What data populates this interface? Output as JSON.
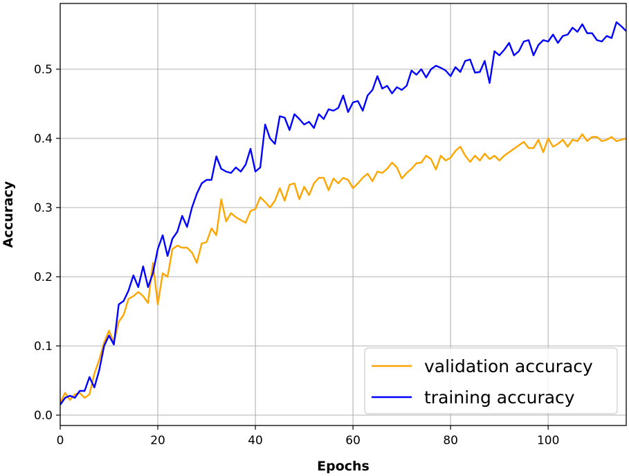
{
  "chart_data": {
    "type": "line",
    "title": "",
    "xlabel": "Epochs",
    "ylabel": "Accuracy",
    "xlim": [
      0,
      116
    ],
    "ylim": [
      -0.015,
      0.595
    ],
    "x_ticks": [
      0,
      20,
      40,
      60,
      80,
      100
    ],
    "x_tick_labels": [
      "0",
      "20",
      "40",
      "60",
      "80",
      "100"
    ],
    "y_ticks": [
      0.0,
      0.1,
      0.2,
      0.3,
      0.4,
      0.5
    ],
    "y_tick_labels": [
      "0.0",
      "0.1",
      "0.2",
      "0.3",
      "0.4",
      "0.5"
    ],
    "grid": true,
    "legend_position": "bottom-right",
    "series": [
      {
        "name": "validation accuracy",
        "color": "#FFA500",
        "x": [
          0,
          1,
          2,
          3,
          4,
          5,
          6,
          7,
          8,
          9,
          10,
          11,
          12,
          13,
          14,
          15,
          16,
          17,
          18,
          19,
          20,
          21,
          22,
          23,
          24,
          25,
          26,
          27,
          28,
          29,
          30,
          31,
          32,
          33,
          34,
          35,
          36,
          37,
          38,
          39,
          40,
          41,
          42,
          43,
          44,
          45,
          46,
          47,
          48,
          49,
          50,
          51,
          52,
          53,
          54,
          55,
          56,
          57,
          58,
          59,
          60,
          61,
          62,
          63,
          64,
          65,
          66,
          67,
          68,
          69,
          70,
          71,
          72,
          73,
          74,
          75,
          76,
          77,
          78,
          79,
          80,
          81,
          82,
          83,
          84,
          85,
          86,
          87,
          88,
          89,
          90,
          91,
          92,
          93,
          94,
          95,
          96,
          97,
          98,
          99,
          100,
          101,
          102,
          103,
          104,
          105,
          106,
          107,
          108,
          109,
          110,
          111,
          112,
          113,
          114,
          115,
          116
        ],
        "values": [
          0.018,
          0.032,
          0.022,
          0.03,
          0.032,
          0.025,
          0.03,
          0.06,
          0.08,
          0.105,
          0.122,
          0.105,
          0.135,
          0.145,
          0.168,
          0.172,
          0.178,
          0.172,
          0.162,
          0.22,
          0.16,
          0.205,
          0.2,
          0.24,
          0.245,
          0.242,
          0.242,
          0.235,
          0.22,
          0.248,
          0.25,
          0.27,
          0.26,
          0.312,
          0.28,
          0.292,
          0.286,
          0.282,
          0.278,
          0.295,
          0.298,
          0.315,
          0.308,
          0.3,
          0.31,
          0.328,
          0.31,
          0.333,
          0.335,
          0.312,
          0.33,
          0.318,
          0.335,
          0.343,
          0.343,
          0.325,
          0.342,
          0.335,
          0.343,
          0.34,
          0.328,
          0.335,
          0.343,
          0.349,
          0.338,
          0.352,
          0.35,
          0.356,
          0.365,
          0.358,
          0.342,
          0.35,
          0.356,
          0.364,
          0.365,
          0.375,
          0.37,
          0.355,
          0.375,
          0.368,
          0.372,
          0.382,
          0.388,
          0.375,
          0.366,
          0.375,
          0.368,
          0.378,
          0.37,
          0.375,
          0.368,
          0.375,
          0.38,
          0.385,
          0.39,
          0.395,
          0.386,
          0.386,
          0.398,
          0.38,
          0.4,
          0.388,
          0.392,
          0.398,
          0.388,
          0.398,
          0.396,
          0.406,
          0.396,
          0.402,
          0.402,
          0.396,
          0.398,
          0.402,
          0.396,
          0.398,
          0.4
        ]
      },
      {
        "name": "training accuracy",
        "color": "#0000FF",
        "x": [
          0,
          1,
          2,
          3,
          4,
          5,
          6,
          7,
          8,
          9,
          10,
          11,
          12,
          13,
          14,
          15,
          16,
          17,
          18,
          19,
          20,
          21,
          22,
          23,
          24,
          25,
          26,
          27,
          28,
          29,
          30,
          31,
          32,
          33,
          34,
          35,
          36,
          37,
          38,
          39,
          40,
          41,
          42,
          43,
          44,
          45,
          46,
          47,
          48,
          49,
          50,
          51,
          52,
          53,
          54,
          55,
          56,
          57,
          58,
          59,
          60,
          61,
          62,
          63,
          64,
          65,
          66,
          67,
          68,
          69,
          70,
          71,
          72,
          73,
          74,
          75,
          76,
          77,
          78,
          79,
          80,
          81,
          82,
          83,
          84,
          85,
          86,
          87,
          88,
          89,
          90,
          91,
          92,
          93,
          94,
          95,
          96,
          97,
          98,
          99,
          100,
          101,
          102,
          103,
          104,
          105,
          106,
          107,
          108,
          109,
          110,
          111,
          112,
          113,
          114,
          115,
          116
        ],
        "values": [
          0.015,
          0.025,
          0.028,
          0.025,
          0.035,
          0.035,
          0.055,
          0.04,
          0.065,
          0.1,
          0.115,
          0.102,
          0.16,
          0.165,
          0.18,
          0.202,
          0.185,
          0.215,
          0.185,
          0.205,
          0.24,
          0.26,
          0.23,
          0.255,
          0.265,
          0.288,
          0.272,
          0.3,
          0.32,
          0.335,
          0.34,
          0.34,
          0.374,
          0.356,
          0.352,
          0.35,
          0.358,
          0.352,
          0.362,
          0.385,
          0.352,
          0.358,
          0.42,
          0.4,
          0.392,
          0.432,
          0.43,
          0.412,
          0.435,
          0.428,
          0.42,
          0.424,
          0.415,
          0.435,
          0.428,
          0.442,
          0.44,
          0.444,
          0.462,
          0.438,
          0.452,
          0.454,
          0.44,
          0.462,
          0.47,
          0.49,
          0.472,
          0.476,
          0.465,
          0.474,
          0.47,
          0.476,
          0.498,
          0.492,
          0.5,
          0.488,
          0.5,
          0.505,
          0.502,
          0.498,
          0.49,
          0.503,
          0.496,
          0.512,
          0.514,
          0.495,
          0.496,
          0.512,
          0.48,
          0.526,
          0.52,
          0.528,
          0.538,
          0.52,
          0.526,
          0.54,
          0.542,
          0.52,
          0.535,
          0.542,
          0.54,
          0.55,
          0.538,
          0.548,
          0.55,
          0.56,
          0.554,
          0.565,
          0.552,
          0.552,
          0.542,
          0.54,
          0.548,
          0.545,
          0.568,
          0.562,
          0.555
        ]
      }
    ]
  }
}
